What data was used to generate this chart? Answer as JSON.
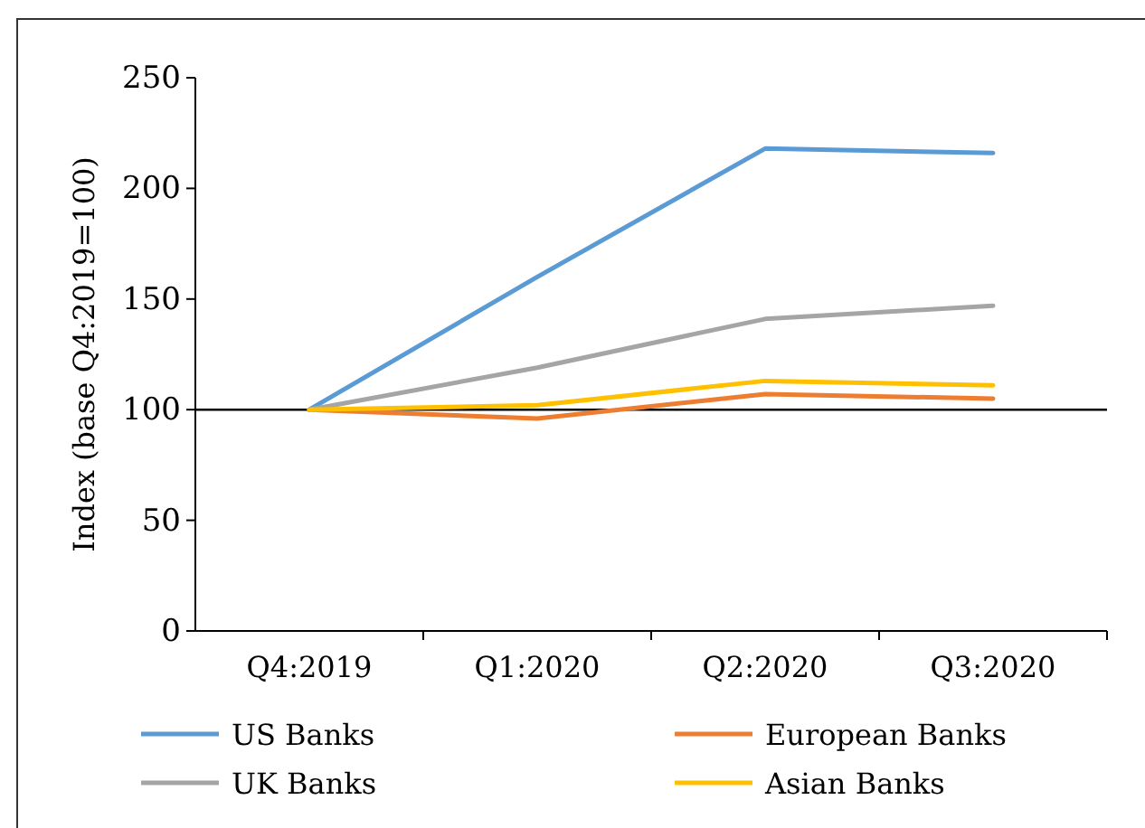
{
  "chart_data": {
    "type": "line",
    "ylabel": "Index (base Q4:2019=100)",
    "categories": [
      "Q4:2019",
      "Q1:2020",
      "Q2:2020",
      "Q3:2020"
    ],
    "series": [
      {
        "name": "US Banks",
        "color": "#5b9bd5",
        "values": [
          100,
          160,
          218,
          216
        ]
      },
      {
        "name": "European Banks",
        "color": "#ed7d31",
        "values": [
          100,
          96,
          107,
          105
        ]
      },
      {
        "name": "UK Banks",
        "color": "#a5a5a5",
        "values": [
          100,
          119,
          141,
          147
        ]
      },
      {
        "name": "Asian Banks",
        "color": "#ffc000",
        "values": [
          100,
          102,
          113,
          111
        ]
      }
    ],
    "ylim": [
      0,
      250
    ],
    "yticks": [
      0,
      50,
      100,
      150,
      200,
      250
    ],
    "ref_lines": [
      {
        "axis": "y",
        "value": 100,
        "color": "#000000"
      }
    ],
    "legend": "bottom",
    "grid": false,
    "marker": "none",
    "line_style": "solid"
  }
}
